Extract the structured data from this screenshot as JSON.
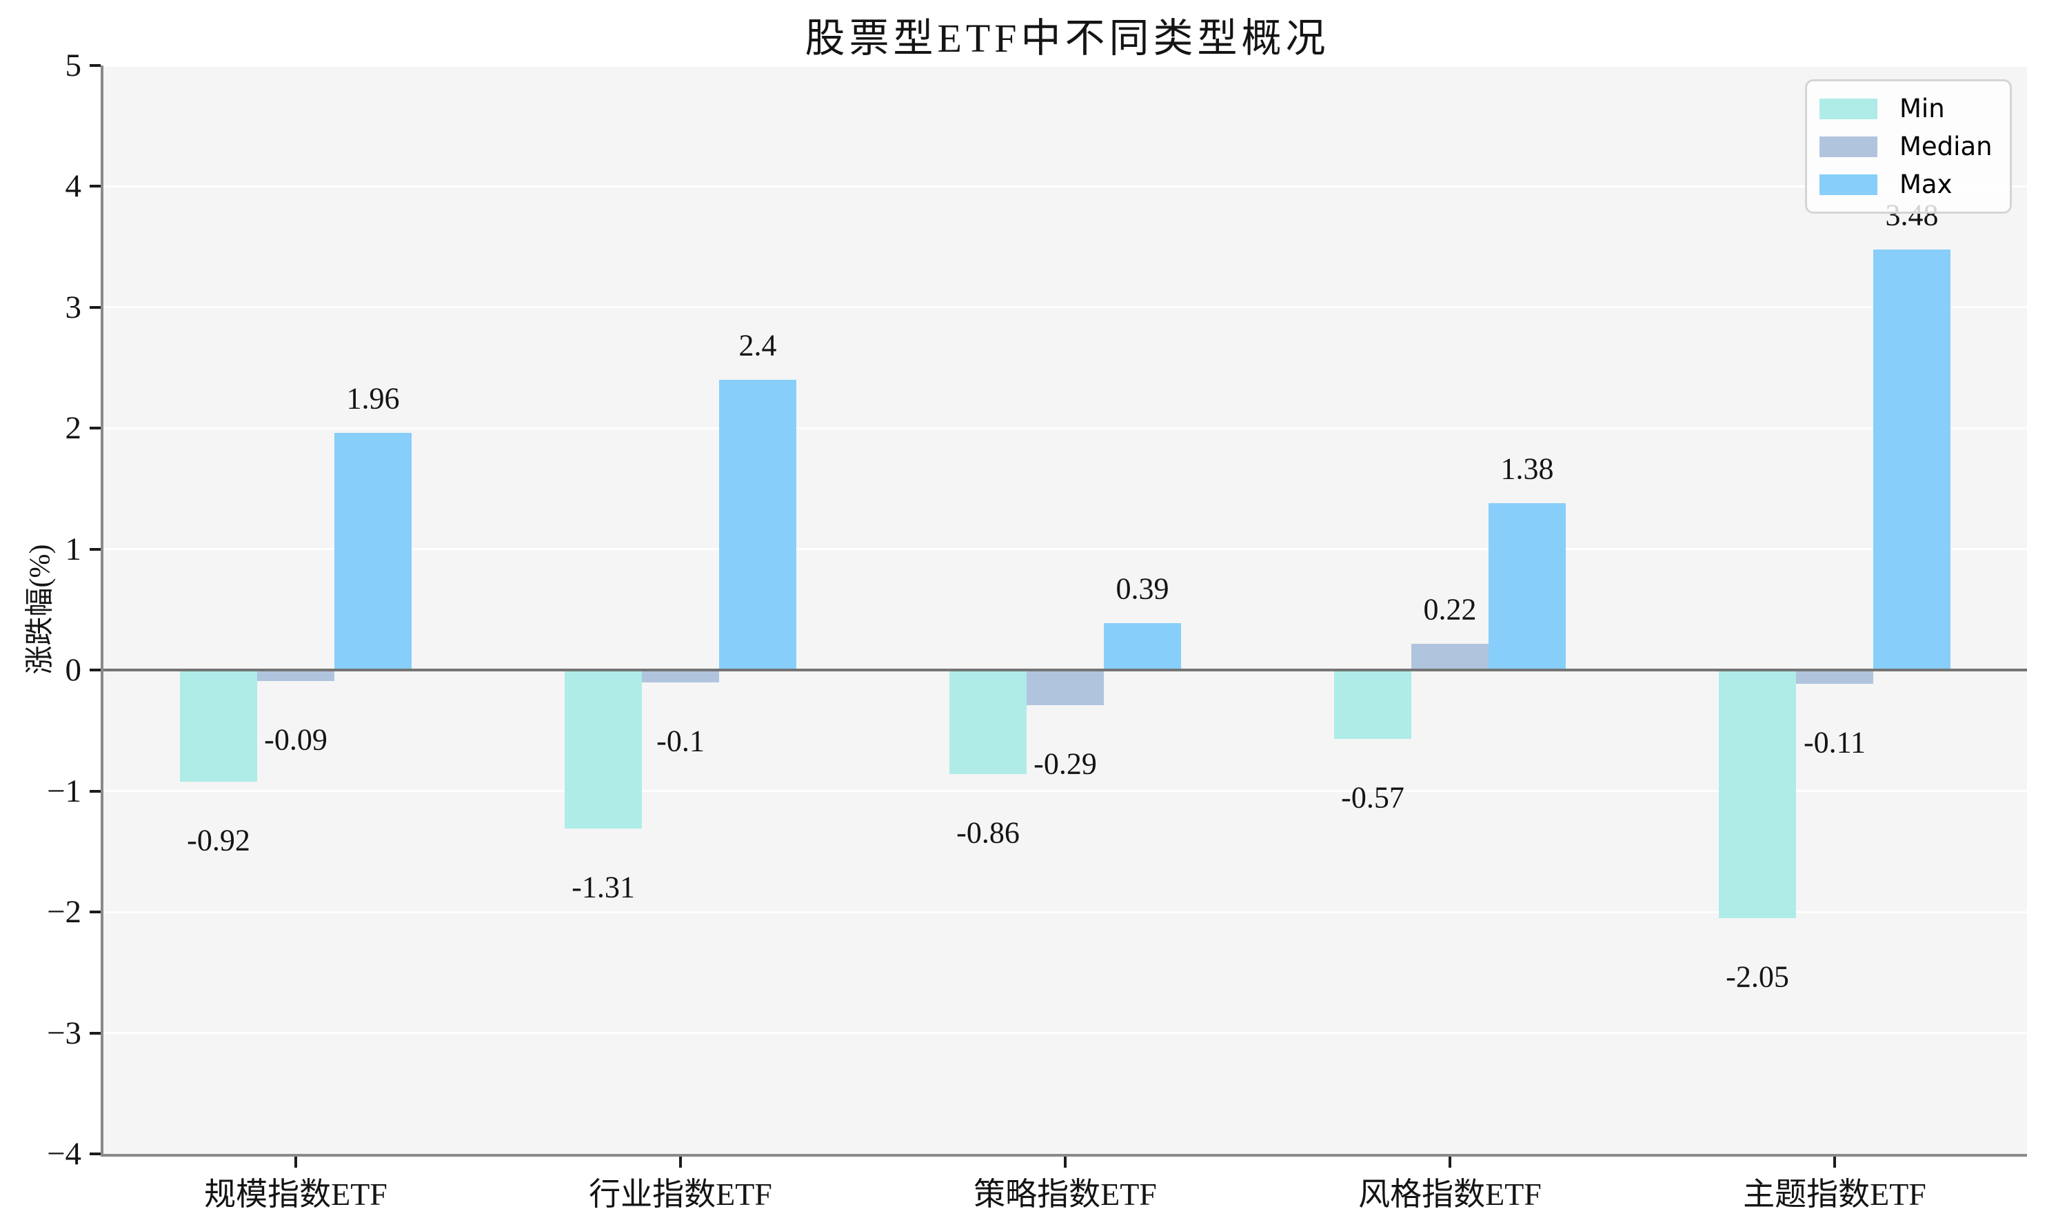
{
  "chart_data": {
    "type": "bar",
    "title": "股票型ETF中不同类型概况",
    "ylabel": "涨跌幅(%)",
    "xlabel": "",
    "categories": [
      "规模指数ETF",
      "行业指数ETF",
      "策略指数ETF",
      "风格指数ETF",
      "主题指数ETF"
    ],
    "series": [
      {
        "name": "Min",
        "color": "#AFECE8",
        "values": [
          -0.92,
          -1.31,
          -0.86,
          -0.57,
          -2.05
        ]
      },
      {
        "name": "Median",
        "color": "#B0C4DE",
        "values": [
          -0.09,
          -0.1,
          -0.29,
          0.22,
          -0.11
        ]
      },
      {
        "name": "Max",
        "color": "#87CEFA",
        "values": [
          1.96,
          2.4,
          0.39,
          1.38,
          3.48
        ]
      }
    ],
    "ylim": [
      -4,
      5
    ],
    "yticks": [
      5,
      4,
      3,
      2,
      1,
      0,
      -1,
      -2,
      -3,
      -4
    ],
    "grid": true,
    "gridline_color": "#FFFFFF",
    "plot_background": "#F5F5F5",
    "zero_line_color": "#757575",
    "legend_position": "upper right",
    "bar_labels": true
  }
}
